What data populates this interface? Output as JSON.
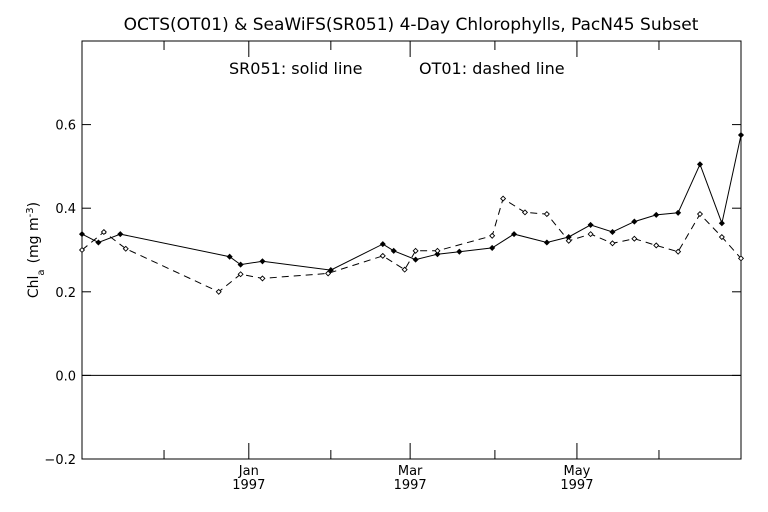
{
  "chart_data": {
    "type": "line",
    "title": "OCTS(OT01) & SeaWiFS(SR051) 4-Day Chlorophylls, PacN45 Subset",
    "subtitle_left": "SR051: solid line",
    "subtitle_right": "OT01: dashed line",
    "ylabel_main": "Chl",
    "ylabel_sub": "a",
    "ylabel_units_open": "(mg m",
    "ylabel_units_exp": "-3",
    "ylabel_units_close": ")",
    "xlim": [
      "1996-11-01",
      "1997-06-30"
    ],
    "ylim": [
      -0.2,
      0.8
    ],
    "y_ticks": [
      {
        "value": 0.6,
        "label": "0.6"
      },
      {
        "value": 0.4,
        "label": "0.4"
      },
      {
        "value": 0.2,
        "label": "0.2"
      },
      {
        "value": 0.0,
        "label": "0.0"
      },
      {
        "value": -0.2,
        "label": "−0.2"
      }
    ],
    "x_minor_ticks": [
      "1996-12-01",
      "1997-01-31",
      "1997-04-01",
      "1997-05-31"
    ],
    "x_major_ticks": [
      {
        "date": "1997-01-01",
        "month": "Jan",
        "year": "1997"
      },
      {
        "date": "1997-03-01",
        "month": "Mar",
        "year": "1997"
      },
      {
        "date": "1997-05-01",
        "month": "May",
        "year": "1997"
      }
    ],
    "reference_line": 0.0,
    "series": [
      {
        "name": "SR051",
        "style": "solid",
        "color": "#000000",
        "points": [
          {
            "x": "1996-11-01",
            "y": 0.338
          },
          {
            "x": "1996-11-07",
            "y": 0.318
          },
          {
            "x": "1996-11-15",
            "y": 0.338
          },
          {
            "x": "1996-12-25",
            "y": 0.284
          },
          {
            "x": "1996-12-29",
            "y": 0.265
          },
          {
            "x": "1997-01-06",
            "y": 0.273
          },
          {
            "x": "1997-01-31",
            "y": 0.252
          },
          {
            "x": "1997-02-19",
            "y": 0.314
          },
          {
            "x": "1997-02-23",
            "y": 0.298
          },
          {
            "x": "1997-03-03",
            "y": 0.277
          },
          {
            "x": "1997-03-11",
            "y": 0.29
          },
          {
            "x": "1997-03-19",
            "y": 0.296
          },
          {
            "x": "1997-03-31",
            "y": 0.305
          },
          {
            "x": "1997-04-08",
            "y": 0.338
          },
          {
            "x": "1997-04-20",
            "y": 0.318
          },
          {
            "x": "1997-04-28",
            "y": 0.331
          },
          {
            "x": "1997-05-06",
            "y": 0.36
          },
          {
            "x": "1997-05-14",
            "y": 0.343
          },
          {
            "x": "1997-05-22",
            "y": 0.368
          },
          {
            "x": "1997-05-30",
            "y": 0.384
          },
          {
            "x": "1997-06-07",
            "y": 0.389
          },
          {
            "x": "1997-06-15",
            "y": 0.505
          },
          {
            "x": "1997-06-23",
            "y": 0.364
          },
          {
            "x": "1997-06-30",
            "y": 0.575
          }
        ]
      },
      {
        "name": "OT01",
        "style": "dashed",
        "color": "#000000",
        "points": [
          {
            "x": "1996-11-01",
            "y": 0.3
          },
          {
            "x": "1996-11-09",
            "y": 0.343
          },
          {
            "x": "1996-11-17",
            "y": 0.303
          },
          {
            "x": "1996-12-21",
            "y": 0.2
          },
          {
            "x": "1996-12-29",
            "y": 0.242
          },
          {
            "x": "1997-01-06",
            "y": 0.232
          },
          {
            "x": "1997-01-30",
            "y": 0.244
          },
          {
            "x": "1997-02-19",
            "y": 0.286
          },
          {
            "x": "1997-02-27",
            "y": 0.253
          },
          {
            "x": "1997-03-03",
            "y": 0.298
          },
          {
            "x": "1997-03-11",
            "y": 0.298
          },
          {
            "x": "1997-03-31",
            "y": 0.334
          },
          {
            "x": "1997-04-04",
            "y": 0.423
          },
          {
            "x": "1997-04-12",
            "y": 0.39
          },
          {
            "x": "1997-04-20",
            "y": 0.386
          },
          {
            "x": "1997-04-28",
            "y": 0.322
          },
          {
            "x": "1997-05-06",
            "y": 0.338
          },
          {
            "x": "1997-05-14",
            "y": 0.316
          },
          {
            "x": "1997-05-22",
            "y": 0.327
          },
          {
            "x": "1997-05-30",
            "y": 0.311
          },
          {
            "x": "1997-06-07",
            "y": 0.296
          },
          {
            "x": "1997-06-15",
            "y": 0.386
          },
          {
            "x": "1997-06-23",
            "y": 0.331
          },
          {
            "x": "1997-06-30",
            "y": 0.28
          }
        ]
      }
    ],
    "grid": false,
    "legend": "top-center"
  }
}
